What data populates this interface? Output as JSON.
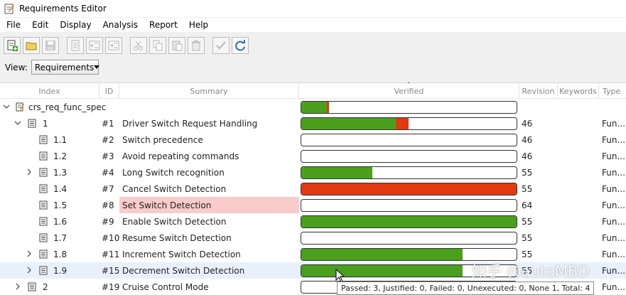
{
  "window": {
    "title": "Requirements Editor"
  },
  "menu": [
    "File",
    "Edit",
    "Display",
    "Analysis",
    "Report",
    "Help"
  ],
  "toolbar": {
    "buttons": [
      "add-requirement-icon",
      "open-folder-icon",
      "save-icon",
      "new-document-icon",
      "outdent-icon",
      "indent-icon",
      "cut-icon",
      "copy-icon",
      "paste-icon",
      "delete-icon",
      "verify-icon",
      "refresh-icon"
    ]
  },
  "view": {
    "label": "View:",
    "selected": "Requirements"
  },
  "columns": {
    "index": "Index",
    "id": "ID",
    "summary": "Summary",
    "verified": "Verified",
    "revision": "Revision",
    "keywords": "Keywords",
    "type": "Type"
  },
  "rows": [
    {
      "index": "crs_req_func_spec",
      "id": "",
      "summary": "",
      "revision": "",
      "type": "",
      "passed": 0.12,
      "failed": 0.01,
      "expander": "expanded"
    },
    {
      "index": "1",
      "id": "#1",
      "summary": "Driver Switch Request Handling",
      "revision": "46",
      "type": "Fun...",
      "passed": 0.44,
      "failed": 0.06,
      "expander": "expanded"
    },
    {
      "index": "1.1",
      "id": "#2",
      "summary": "Switch precedence",
      "revision": "46",
      "type": "Fun...",
      "passed": 0,
      "failed": 0,
      "expander": "none"
    },
    {
      "index": "1.2",
      "id": "#3",
      "summary": "Avoid repeating commands",
      "revision": "46",
      "type": "Fun...",
      "passed": 0,
      "failed": 0,
      "expander": "none"
    },
    {
      "index": "1.3",
      "id": "#4",
      "summary": "Long Switch recognition",
      "revision": "55",
      "type": "Fun...",
      "passed": 0.33,
      "failed": 0,
      "expander": "collapsed"
    },
    {
      "index": "1.4",
      "id": "#7",
      "summary": "Cancel Switch Detection",
      "revision": "55",
      "type": "Fun...",
      "passed": 0,
      "failed": 1,
      "expander": "none"
    },
    {
      "index": "1.5",
      "id": "#8",
      "summary": "Set Switch Detection",
      "revision": "64",
      "type": "Fun...",
      "passed": 0,
      "failed": 0,
      "expander": "none",
      "highlight": true
    },
    {
      "index": "1.6",
      "id": "#9",
      "summary": "Enable Switch Detection",
      "revision": "55",
      "type": "Fun...",
      "passed": 1,
      "failed": 0,
      "expander": "none"
    },
    {
      "index": "1.7",
      "id": "#10",
      "summary": "Resume Switch Detection",
      "revision": "55",
      "type": "Fun...",
      "passed": 0,
      "failed": 0,
      "expander": "none"
    },
    {
      "index": "1.8",
      "id": "#11",
      "summary": "Increment Switch Detection",
      "revision": "55",
      "type": "Fun...",
      "passed": 0.75,
      "failed": 0,
      "expander": "collapsed"
    },
    {
      "index": "1.9",
      "id": "#15",
      "summary": "Decrement Switch Detection",
      "revision": "55",
      "type": "Fun...",
      "passed": 0.75,
      "failed": 0,
      "expander": "collapsed",
      "selected": true
    },
    {
      "index": "2",
      "id": "#19",
      "summary": "Cruise Control Mode",
      "revision": "",
      "type": "Fun...",
      "passed": 0,
      "failed": 0,
      "expander": "collapsed"
    }
  ],
  "tooltip": "Passed: 3, Justified: 0, Failed: 0, Unexecuted: 0, None 1, Total: 4",
  "watermark": "知乎 @autoMBD",
  "colors": {
    "passed": "#4aa01d",
    "failed": "#e03a10",
    "highlight": "#f9cbcb",
    "selected": "#e8f1fb"
  }
}
